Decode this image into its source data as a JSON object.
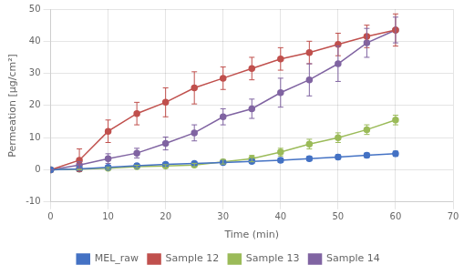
{
  "chart_data": {
    "type": "line",
    "xlabel": "Time (min)",
    "ylabel": "Permeation [μg/cm²]",
    "x": [
      0,
      5,
      10,
      15,
      20,
      25,
      30,
      35,
      40,
      45,
      50,
      55,
      60
    ],
    "series": [
      {
        "name": "MEL_raw",
        "color": "#4472C4",
        "marker": "circle",
        "line_style": "solid",
        "values": [
          0,
          0.3,
          0.8,
          1.3,
          1.7,
          2.0,
          2.3,
          2.6,
          3.0,
          3.5,
          4.0,
          4.5,
          5.0
        ],
        "errors": [
          0,
          0.3,
          0.5,
          0.5,
          0.5,
          0.5,
          0.5,
          0.5,
          0.7,
          0.7,
          0.7,
          0.7,
          0.8
        ]
      },
      {
        "name": "Sample 12",
        "color": "#C0504D",
        "marker": "circle",
        "line_style": "solid",
        "values": [
          0,
          3.0,
          12.0,
          17.5,
          21.0,
          25.5,
          28.5,
          31.5,
          34.5,
          36.5,
          39.0,
          41.5,
          43.5
        ],
        "errors": [
          0,
          3.5,
          3.5,
          3.5,
          4.5,
          5.0,
          3.5,
          3.5,
          3.5,
          3.5,
          3.5,
          3.5,
          5.0
        ]
      },
      {
        "name": "Sample 13",
        "color": "#9BBB59",
        "marker": "circle",
        "line_style": "solid",
        "values": [
          0,
          0.2,
          0.5,
          1.0,
          1.2,
          1.5,
          2.5,
          3.5,
          5.5,
          8.0,
          10.0,
          12.5,
          15.5
        ],
        "errors": [
          0,
          0.2,
          0.3,
          0.4,
          0.4,
          0.5,
          0.7,
          1.0,
          1.2,
          1.5,
          1.5,
          1.5,
          1.5
        ]
      },
      {
        "name": "Sample 14",
        "color": "#8064A2",
        "marker": "circle",
        "line_style": "solid",
        "values": [
          0,
          1.5,
          3.5,
          5.2,
          8.2,
          11.5,
          16.5,
          19.0,
          24.0,
          28.0,
          33.0,
          39.5,
          43.5
        ],
        "errors": [
          0,
          1.0,
          1.5,
          1.5,
          2.0,
          2.5,
          2.5,
          3.0,
          4.5,
          5.0,
          5.5,
          4.5,
          4.0
        ]
      }
    ],
    "xlim": [
      0,
      70
    ],
    "ylim": [
      -10,
      50
    ],
    "xticks": [
      0,
      10,
      20,
      30,
      40,
      50,
      60,
      70
    ],
    "yticks": [
      -10,
      0,
      10,
      20,
      30,
      40,
      50
    ],
    "grid": true,
    "legend": "bottom"
  }
}
